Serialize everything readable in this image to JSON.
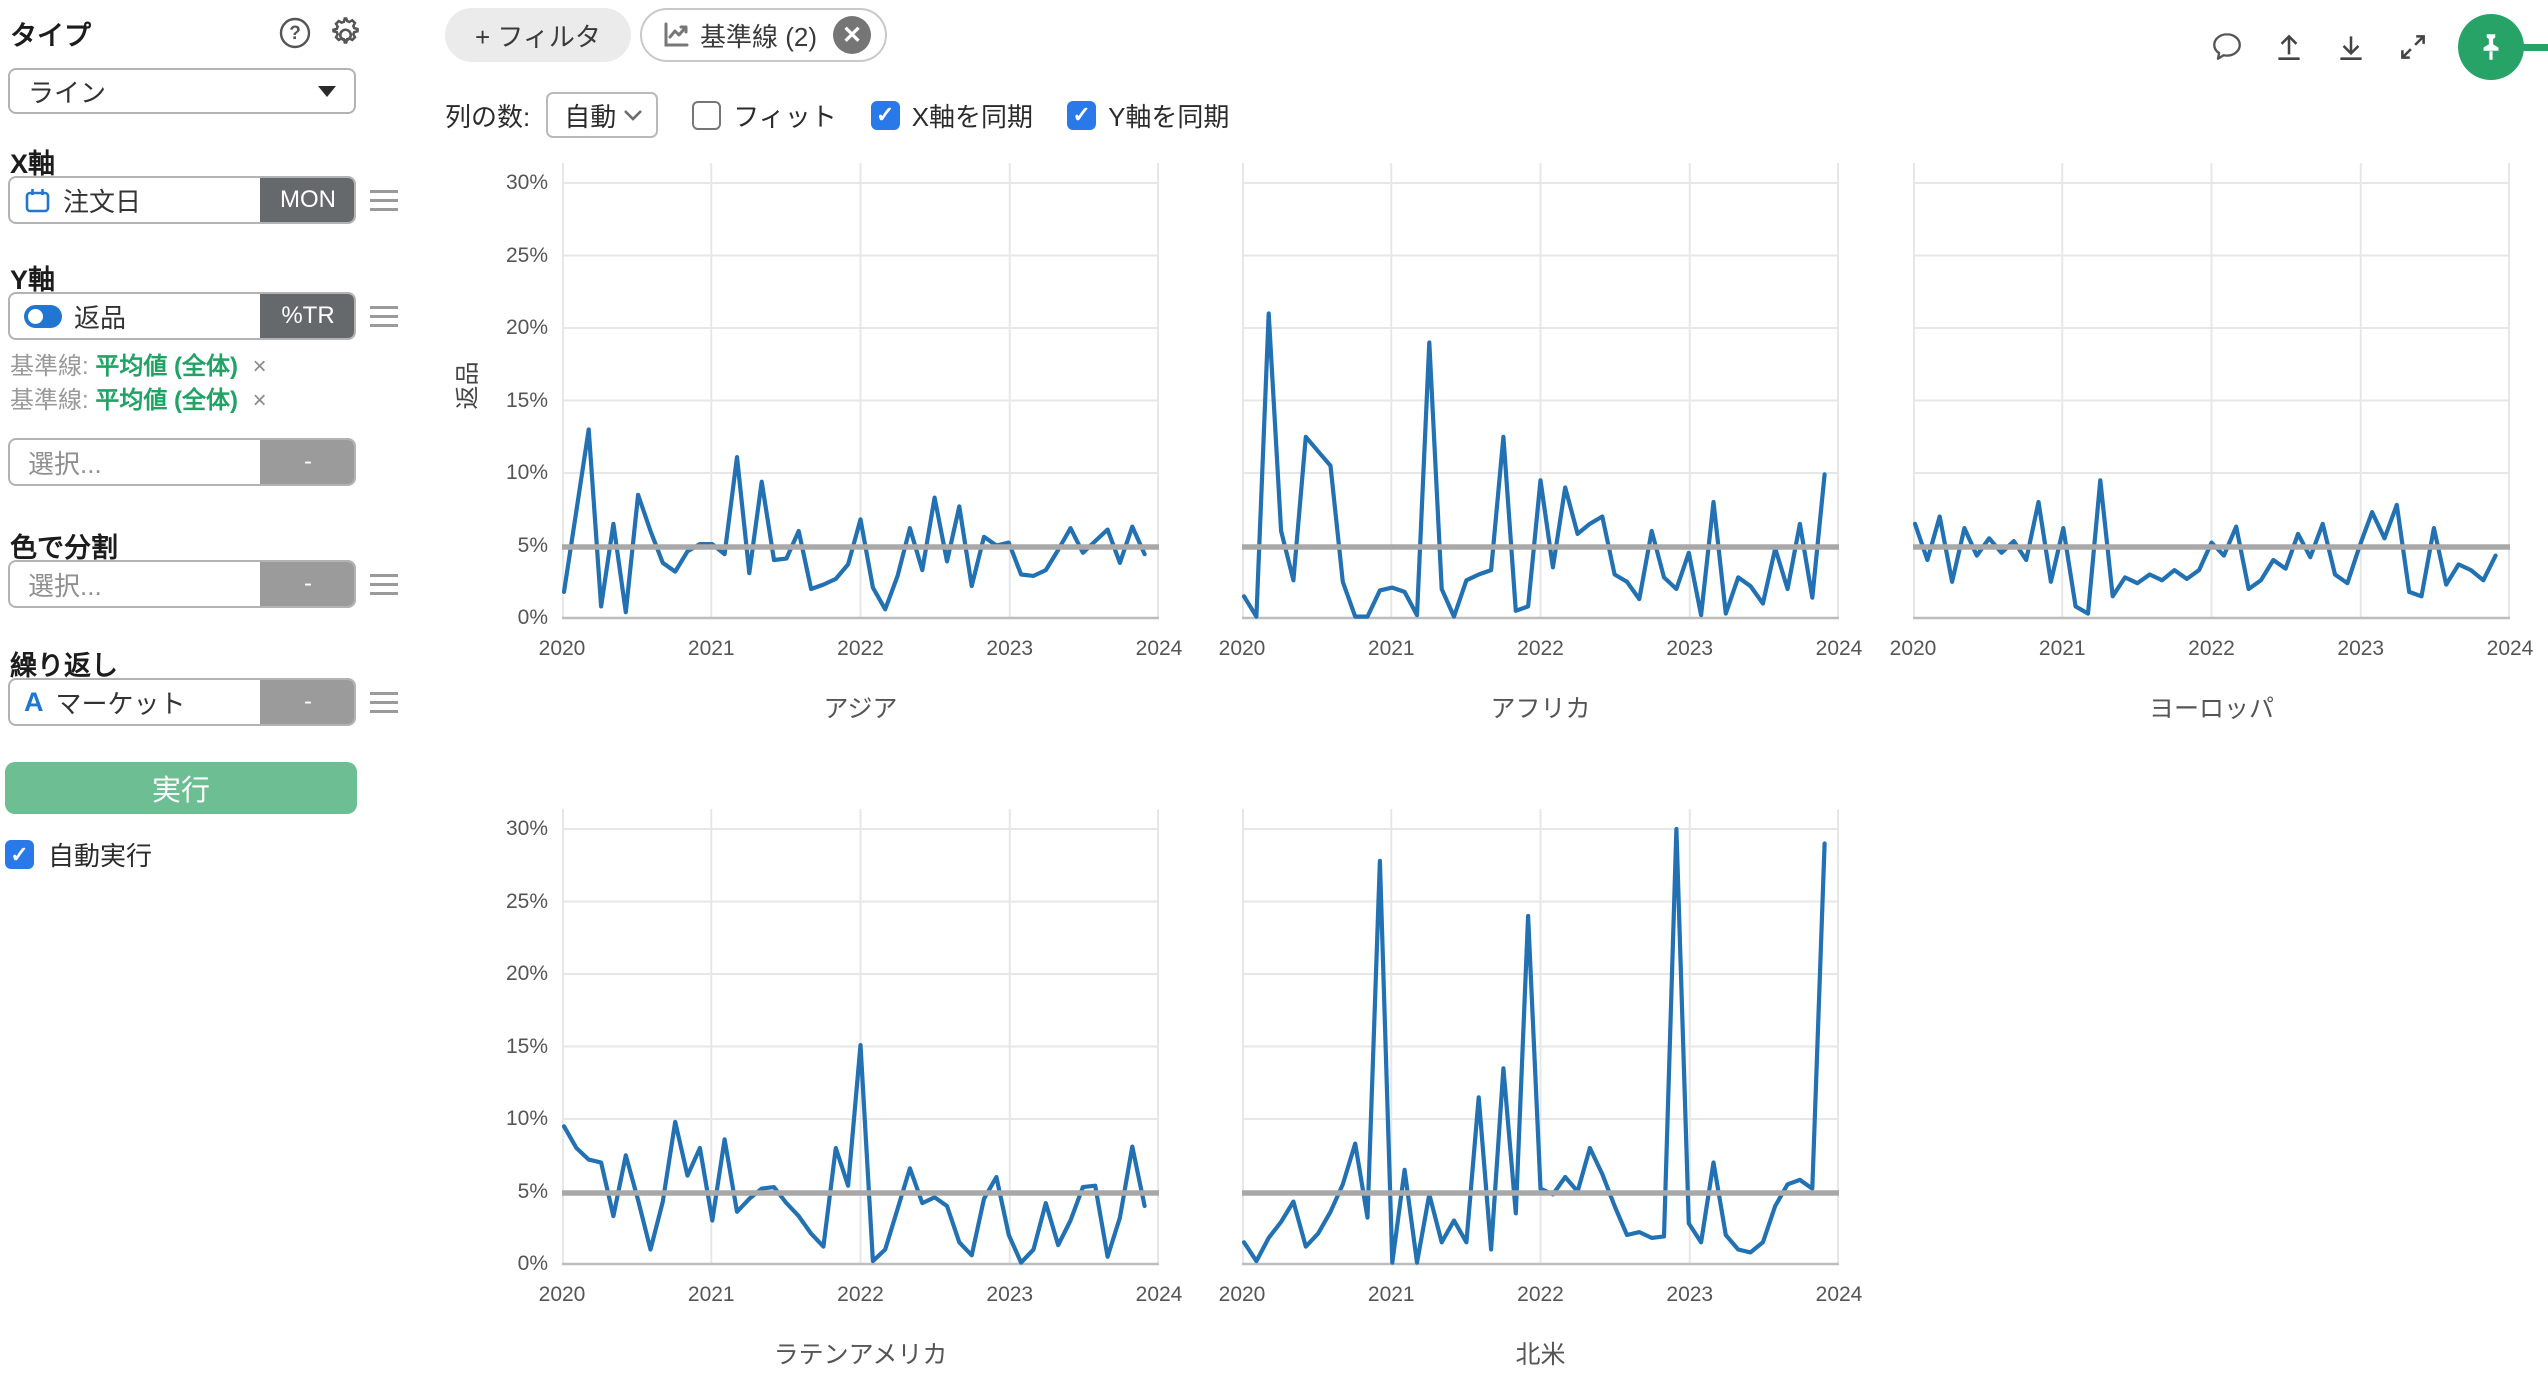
{
  "sidebar": {
    "type_header": "タイプ",
    "type_value": "ライン",
    "x_axis_header": "X軸",
    "x_field": "注文日",
    "x_badge": "MON",
    "y_axis_header": "Y軸",
    "y_field": "返品",
    "y_badge": "%TR",
    "reference_lines": [
      {
        "prefix": "基準線:",
        "value": "平均値 (全体)",
        "remove": "×"
      },
      {
        "prefix": "基準線:",
        "value": "平均値 (全体)",
        "remove": "×"
      }
    ],
    "y_select_placeholder": "選択...",
    "y_select_badge": "-",
    "color_header": "色で分割",
    "color_placeholder": "選択...",
    "color_badge": "-",
    "repeat_header": "繰り返し",
    "repeat_field": "マーケット",
    "repeat_badge": "-",
    "run_label": "実行",
    "auto_run_label": "自動実行",
    "auto_run_checked": true
  },
  "topbar": {
    "filter_button": "+ フィルタ",
    "baseline_chip": "基準線 (2)",
    "baseline_close": "✕",
    "columns_label": "列の数:",
    "columns_value": "自動",
    "fit_label": "フィット",
    "fit_checked": false,
    "sync_x_label": "X軸を同期",
    "sync_x_checked": true,
    "sync_y_label": "Y軸を同期",
    "sync_y_checked": true
  },
  "colors": {
    "line": "#2271b3",
    "baseline": "#a8a8a8",
    "grid": "#e7e7e7",
    "axis_zero": "#bdbdbd",
    "accent_blue": "#2176d2",
    "run_green": "#6dbe92",
    "pin_green": "#27a368",
    "ref_green": "#21a366"
  },
  "chart_data": {
    "type": "line",
    "y_axis_title": "返品",
    "x_unit": "month",
    "x_start": "2020-01",
    "x_end": "2023-12",
    "x_tick_labels": [
      "2020",
      "2021",
      "2022",
      "2023",
      "2024"
    ],
    "y_tick_labels": [
      "0%",
      "5%",
      "10%",
      "15%",
      "20%",
      "25%",
      "30%"
    ],
    "y_tick_values": [
      0,
      5,
      10,
      15,
      20,
      25,
      30
    ],
    "ylim": [
      0,
      30
    ],
    "baseline": {
      "label": "平均値 (全体)",
      "value": 4.9
    },
    "charts": [
      {
        "title": "アジア",
        "show_y_axis": true,
        "values": [
          1.8,
          7.4,
          13.0,
          0.8,
          6.5,
          0.4,
          8.5,
          6.0,
          3.8,
          3.2,
          4.6,
          5.1,
          5.1,
          4.4,
          11.1,
          3.1,
          9.4,
          4.0,
          4.1,
          6.0,
          2.0,
          2.3,
          2.7,
          3.7,
          6.8,
          2.1,
          0.6,
          2.9,
          6.2,
          3.3,
          8.3,
          3.9,
          7.7,
          2.2,
          5.6,
          5.0,
          5.2,
          3.0,
          2.9,
          3.3,
          4.7,
          6.2,
          4.5,
          5.3,
          6.1,
          3.8,
          6.3,
          4.4
        ]
      },
      {
        "title": "アフリカ",
        "show_y_axis": false,
        "values": [
          1.5,
          0.1,
          21.0,
          6.0,
          2.6,
          12.5,
          11.5,
          10.5,
          2.5,
          0.1,
          0.1,
          1.9,
          2.1,
          1.8,
          0.2,
          19.0,
          2.0,
          0.1,
          2.6,
          3.0,
          3.3,
          12.5,
          0.5,
          0.8,
          9.5,
          3.5,
          9.0,
          5.8,
          6.5,
          7.0,
          3.0,
          2.5,
          1.3,
          6.0,
          2.8,
          2.0,
          4.5,
          0.2,
          8.0,
          0.3,
          2.8,
          2.2,
          1.0,
          4.8,
          2.0,
          6.5,
          1.4,
          9.9
        ]
      },
      {
        "title": "ヨーロッパ",
        "show_y_axis": false,
        "values": [
          6.5,
          4.0,
          7.0,
          2.5,
          6.2,
          4.3,
          5.5,
          4.5,
          5.3,
          4.0,
          8.0,
          2.5,
          6.2,
          0.8,
          0.3,
          9.5,
          1.5,
          2.8,
          2.4,
          3.0,
          2.6,
          3.3,
          2.7,
          3.3,
          5.2,
          4.3,
          6.3,
          2.0,
          2.6,
          4.0,
          3.4,
          5.8,
          4.2,
          6.5,
          3.0,
          2.4,
          5.0,
          7.3,
          5.5,
          7.8,
          1.8,
          1.5,
          6.2,
          2.3,
          3.7,
          3.3,
          2.6,
          4.3
        ]
      },
      {
        "title": "ラテンアメリカ",
        "show_y_axis": true,
        "values": [
          9.5,
          8.0,
          7.2,
          7.0,
          3.3,
          7.5,
          4.4,
          1.0,
          4.3,
          9.8,
          6.1,
          8.0,
          3.0,
          8.6,
          3.6,
          4.5,
          5.2,
          5.3,
          4.2,
          3.3,
          2.1,
          1.2,
          8.0,
          5.4,
          15.1,
          0.2,
          1.0,
          3.8,
          6.6,
          4.2,
          4.6,
          4.0,
          1.5,
          0.6,
          4.5,
          6.0,
          2.0,
          0.1,
          1.0,
          4.2,
          1.3,
          3.0,
          5.3,
          5.4,
          0.5,
          3.2,
          8.1,
          4.0
        ]
      },
      {
        "title": "北米",
        "show_y_axis": false,
        "values": [
          1.5,
          0.2,
          1.8,
          2.9,
          4.3,
          1.2,
          2.1,
          3.6,
          5.5,
          8.3,
          3.2,
          27.8,
          0.1,
          6.5,
          0.1,
          4.8,
          1.5,
          3.0,
          1.5,
          11.5,
          1.0,
          13.5,
          3.5,
          24.0,
          5.2,
          4.8,
          6.0,
          5.0,
          8.0,
          6.2,
          4.0,
          2.0,
          2.2,
          1.8,
          1.9,
          30.0,
          2.8,
          1.5,
          7.0,
          2.0,
          1.0,
          0.8,
          1.5,
          4.0,
          5.5,
          5.8,
          5.2,
          29.0
        ]
      }
    ]
  }
}
